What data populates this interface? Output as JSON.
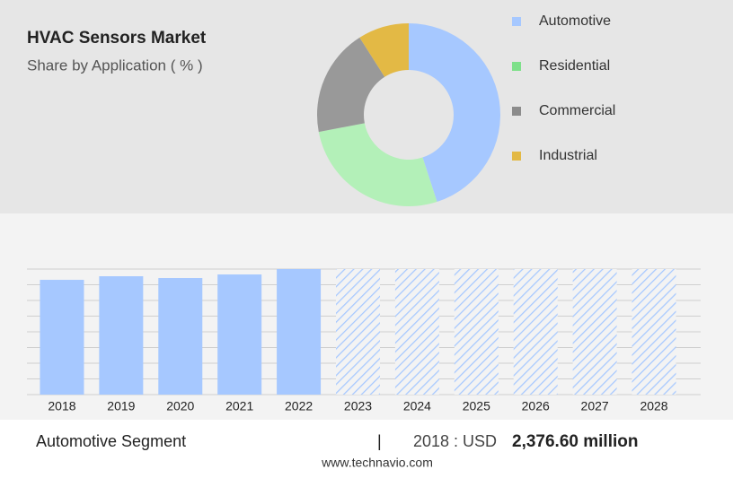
{
  "header": {
    "title": "HVAC Sensors Market",
    "subtitle": "Share by Application ( % )"
  },
  "chart_data": [
    {
      "type": "donut",
      "categories": [
        "Automotive",
        "Residential",
        "Commercial",
        "Industrial"
      ],
      "values": [
        45,
        27,
        19,
        9
      ],
      "colors": [
        "#a6c8ff",
        "#b3f0b8",
        "#999999",
        "#e3b945"
      ],
      "legend_colors": [
        "#a6c8ff",
        "#7ee08a",
        "#8c8c8c",
        "#e3b945"
      ]
    },
    {
      "type": "bar",
      "categories": [
        "2018",
        "2019",
        "2020",
        "2021",
        "2022",
        "2023",
        "2024",
        "2025",
        "2026",
        "2027",
        "2028"
      ],
      "values": [
        2376.6,
        2451,
        2414,
        2488,
        2600,
        null,
        null,
        null,
        null,
        null,
        null
      ],
      "color": "#a6c8ff",
      "forecast_color": "#a6c8ff",
      "ylim": [
        0,
        2600
      ],
      "yticks": [
        0,
        325,
        650,
        975,
        1300,
        1625,
        1950,
        2275,
        2600
      ],
      "grid": true
    }
  ],
  "footer": {
    "segment": "Automotive Segment",
    "separator": "|",
    "year_label": "2018 : USD",
    "highlight": "2,376.60 million",
    "source": "www.technavio.com"
  }
}
